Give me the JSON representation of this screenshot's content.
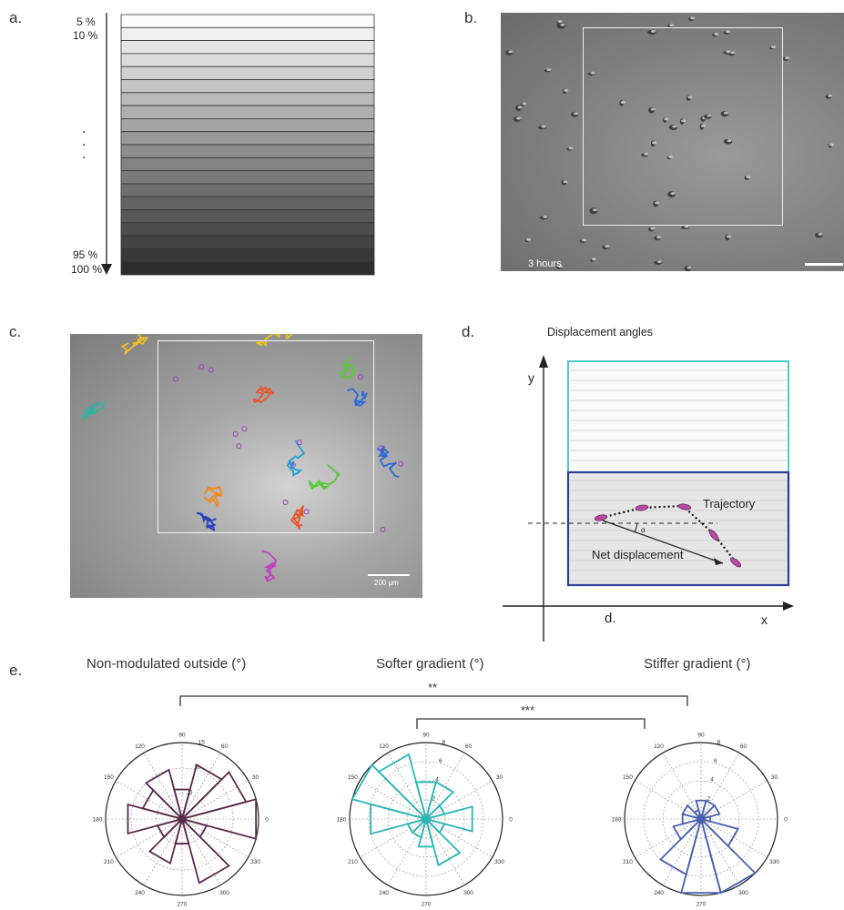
{
  "panels": {
    "a": {
      "label": "a.",
      "top_labels": [
        "5 %",
        "10 %"
      ],
      "ellipsis": ".\n.\n.",
      "bottom_labels": [
        "95 %",
        "100 %"
      ],
      "stripe_count": 20
    },
    "b": {
      "label": "b.",
      "time_label": "3 hours"
    },
    "c": {
      "label": "c.",
      "scalebar_label": "200 μm"
    },
    "d": {
      "label": "d.",
      "title": "Displacement angles",
      "y_axis": "y",
      "x_axis": "x",
      "trajectory_label": "Trajectory",
      "net_label": "Net displacement",
      "angle_symbol": "α",
      "d_label": "d."
    },
    "e": {
      "label": "e.",
      "titles": [
        "Non-modulated outside (°)",
        "Softer gradient (°)",
        "Stiffer gradient (°)"
      ],
      "significance": [
        "**",
        "***"
      ],
      "angle_labels": [
        "0",
        "30",
        "60",
        "90",
        "120",
        "150",
        "180",
        "210",
        "240",
        "270",
        "300",
        "330"
      ]
    }
  },
  "chart_data": [
    {
      "type": "polar-histogram",
      "title": "Non-modulated outside (°)",
      "color": "#5a2a4a",
      "rmax": 15,
      "rticks": [
        5,
        10,
        15
      ],
      "bins_deg": [
        0,
        30,
        60,
        90,
        120,
        150,
        180,
        210,
        240,
        270,
        300,
        330
      ],
      "values": [
        15,
        13,
        11,
        6,
        10,
        8,
        11,
        5,
        9,
        5,
        13,
        5
      ]
    },
    {
      "type": "polar-histogram",
      "title": "Softer gradient (°)",
      "color": "#2ab5b5",
      "rmax": 8,
      "rticks": [
        2,
        4,
        6,
        8
      ],
      "bins_deg": [
        0,
        30,
        60,
        90,
        120,
        150,
        180,
        210,
        240,
        270,
        300,
        330
      ],
      "values": [
        5,
        2,
        4,
        4,
        7,
        8,
        6,
        2,
        2,
        3,
        5,
        2
      ]
    },
    {
      "type": "polar-histogram",
      "title": "Stiffer gradient (°)",
      "color": "#4a5fb0",
      "rmax": 8,
      "rticks": [
        2,
        4,
        6,
        8
      ],
      "bins_deg": [
        0,
        30,
        60,
        90,
        120,
        150,
        180,
        210,
        240,
        270,
        300,
        330
      ],
      "values": [
        1,
        2,
        2,
        2,
        1,
        2,
        2,
        3,
        6,
        8,
        8,
        4
      ]
    }
  ]
}
